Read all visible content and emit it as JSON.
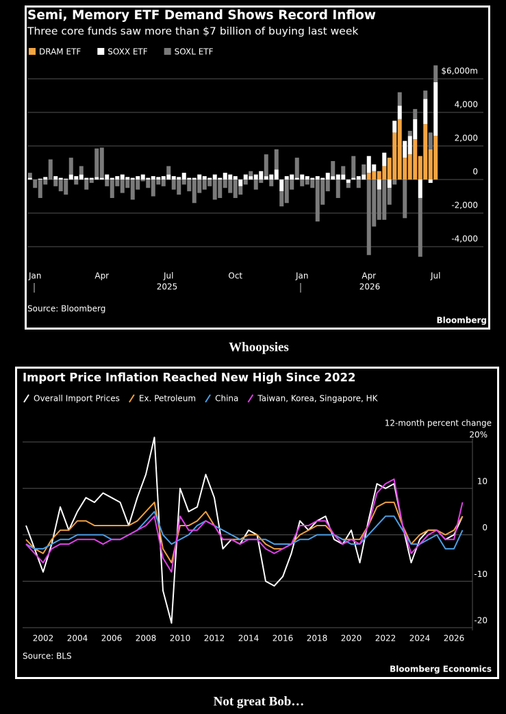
{
  "chart_data": [
    {
      "type": "bar",
      "stacked": true,
      "title": "Semi, Memory ETF Demand Shows Record Inflow",
      "subtitle": "Three core funds saw more than $7 billion of buying last week",
      "source": "Source: Bloomberg",
      "brand": "Bloomberg",
      "categories": [
        null,
        "Jan",
        null,
        null,
        null,
        null,
        null,
        null,
        null,
        null,
        null,
        null,
        null,
        null,
        "Apr",
        null,
        null,
        null,
        null,
        null,
        null,
        null,
        null,
        null,
        null,
        null,
        null,
        "Jul",
        null,
        null,
        null,
        null,
        null,
        null,
        null,
        null,
        null,
        null,
        null,
        null,
        "Oct",
        null,
        null,
        null,
        null,
        null,
        null,
        null,
        null,
        null,
        null,
        null,
        null,
        "Jan",
        null,
        null,
        null,
        null,
        null,
        null,
        null,
        null,
        null,
        null,
        null,
        null,
        "Apr",
        null,
        null,
        null,
        null,
        null,
        null,
        null,
        null,
        null,
        null,
        null,
        null,
        "Jul"
      ],
      "year_labels": [
        "2025",
        "2026"
      ],
      "series": [
        {
          "name": "DRAM ETF",
          "color": "#f5a542",
          "values": [
            0,
            0,
            0,
            0,
            0,
            0,
            0,
            0,
            0,
            0,
            0,
            0,
            0,
            0,
            0,
            0,
            0,
            0,
            0,
            0,
            0,
            0,
            0,
            0,
            0,
            0,
            0,
            0,
            0,
            0,
            0,
            0,
            0,
            0,
            0,
            0,
            0,
            0,
            0,
            0,
            0,
            0,
            0,
            0,
            0,
            0,
            0,
            0,
            0,
            0,
            0,
            0,
            0,
            0,
            0,
            0,
            0,
            0,
            0,
            0,
            0,
            0,
            0,
            0,
            0,
            0,
            400,
            500,
            500,
            800,
            1300,
            2800,
            3600,
            1300,
            1500,
            2400,
            1400,
            3300,
            1800,
            2600
          ]
        },
        {
          "name": "SOXX ETF",
          "color": "#ffffff",
          "values": [
            100,
            0,
            50,
            150,
            0,
            200,
            100,
            50,
            300,
            200,
            300,
            100,
            100,
            150,
            100,
            300,
            100,
            200,
            300,
            150,
            100,
            200,
            300,
            100,
            200,
            150,
            200,
            300,
            200,
            150,
            400,
            100,
            100,
            300,
            200,
            100,
            300,
            100,
            400,
            300,
            200,
            -400,
            300,
            200,
            300,
            500,
            200,
            300,
            600,
            -700,
            200,
            300,
            100,
            300,
            200,
            100,
            200,
            100,
            400,
            200,
            300,
            300,
            -200,
            100,
            200,
            300,
            1000,
            400,
            -600,
            800,
            -500,
            700,
            800,
            1000,
            1100,
            1200,
            -1100,
            1500,
            -200,
            3200
          ]
        },
        {
          "name": "SOXL ETF",
          "color": "#7a7a7a",
          "values": [
            300,
            -500,
            -1100,
            -300,
            1200,
            -400,
            -700,
            -900,
            1000,
            -300,
            500,
            -600,
            -200,
            1700,
            1800,
            -400,
            -1100,
            -400,
            -800,
            -500,
            -1200,
            -600,
            -100,
            -500,
            -1000,
            -300,
            -400,
            500,
            -600,
            -900,
            -300,
            -700,
            -1400,
            -800,
            -600,
            -400,
            -1200,
            -1100,
            -500,
            -800,
            -1100,
            -500,
            -300,
            300,
            -600,
            -200,
            1300,
            -400,
            1200,
            -900,
            -1400,
            -600,
            1200,
            -400,
            -300,
            -500,
            -2500,
            -1500,
            -700,
            900,
            -1100,
            500,
            -300,
            1300,
            -500,
            600,
            -4500,
            -2800,
            -1800,
            -2400,
            -1000,
            -300,
            800,
            -2300,
            300,
            600,
            -3500,
            500,
            1000,
            1000
          ]
        }
      ],
      "ylim": [
        -5000,
        7000
      ],
      "yticks": [
        {
          "value": 6000,
          "label": "$6,000m"
        },
        {
          "value": 4000,
          "label": "4,000"
        },
        {
          "value": 2000,
          "label": "2,000"
        },
        0,
        {
          "value": -2000,
          "label": "-2,000"
        },
        {
          "value": -4000,
          "label": "-4,000"
        }
      ],
      "grid": true
    },
    {
      "type": "line",
      "title": "Import Price Inflation Reached New High Since 2022",
      "y_axis_label": "12-month percent change",
      "source": "Source: BLS",
      "brand": "Bloomberg Economics",
      "x": [
        2001,
        2001.5,
        2002,
        2002.5,
        2003,
        2003.5,
        2004,
        2004.5,
        2005,
        2005.5,
        2006,
        2006.5,
        2007,
        2007.5,
        2008,
        2008.5,
        2009,
        2009.5,
        2010,
        2010.5,
        2011,
        2011.5,
        2012,
        2012.5,
        2013,
        2013.5,
        2014,
        2014.5,
        2015,
        2015.5,
        2016,
        2016.5,
        2017,
        2017.5,
        2018,
        2018.5,
        2019,
        2019.5,
        2020,
        2020.5,
        2021,
        2021.5,
        2022,
        2022.5,
        2023,
        2023.5,
        2024,
        2024.5,
        2025,
        2025.5,
        2026,
        2026.5
      ],
      "series": [
        {
          "name": "Overall Import Prices",
          "color": "#ffffff",
          "values": [
            2,
            -3,
            -8,
            -2,
            6,
            1,
            5,
            8,
            7,
            9,
            8,
            7,
            2,
            8,
            13,
            21,
            -12,
            -19,
            10,
            5,
            6,
            13,
            8,
            -3,
            -1,
            -2,
            1,
            0,
            -10,
            -11,
            -9,
            -4,
            3,
            1,
            3,
            4,
            -1,
            -2,
            1,
            -6,
            3,
            11,
            10,
            11,
            2,
            -6,
            -1,
            1,
            1,
            -1,
            0,
            4
          ]
        },
        {
          "name": "Ex. Petroleum",
          "color": "#f0a040",
          "values": [
            -1,
            -3,
            -4,
            -1,
            1,
            1,
            3,
            3,
            2,
            2,
            2,
            2,
            2,
            3,
            5,
            7,
            -3,
            -6,
            2,
            2,
            3,
            5,
            2,
            -1,
            -1,
            -1,
            0,
            0,
            -2,
            -3,
            -3,
            -2,
            0,
            1,
            2,
            2,
            0,
            -1,
            -1,
            -1,
            2,
            6,
            7,
            7,
            2,
            -2,
            0,
            1,
            1,
            0,
            1,
            4
          ]
        },
        {
          "name": "China",
          "color": "#4aa0e8",
          "values": [
            -2,
            -3,
            -3,
            -2,
            -1,
            -1,
            0,
            0,
            0,
            0,
            -1,
            -1,
            0,
            1,
            3,
            5,
            0,
            -2,
            -1,
            0,
            2,
            3,
            2,
            1,
            0,
            -1,
            -1,
            -1,
            -1,
            -2,
            -2,
            -2,
            -1,
            -1,
            0,
            0,
            0,
            -1,
            -2,
            -2,
            0,
            2,
            4,
            4,
            1,
            -2,
            -2,
            -1,
            0,
            -3,
            -3,
            1
          ]
        },
        {
          "name": "Taiwan, Korea, Singapore, HK",
          "color": "#e040e8",
          "values": [
            -2,
            -4,
            -6,
            -3,
            -2,
            -2,
            -1,
            -1,
            -1,
            -2,
            -1,
            -1,
            0,
            1,
            2,
            4,
            -5,
            -8,
            4,
            1,
            1,
            3,
            2,
            -1,
            -1,
            -2,
            -1,
            -1,
            -3,
            -4,
            -3,
            -2,
            2,
            2,
            3,
            3,
            0,
            -2,
            -1,
            -2,
            2,
            9,
            11,
            12,
            2,
            -4,
            -2,
            0,
            1,
            -1,
            -1,
            7
          ]
        }
      ],
      "xlim": [
        2000.8,
        2027
      ],
      "xticks": [
        2002,
        2004,
        2006,
        2008,
        2010,
        2012,
        2014,
        2016,
        2018,
        2020,
        2022,
        2024,
        2026
      ],
      "ylim": [
        -21,
        22
      ],
      "yticks": [
        {
          "value": 20,
          "label": "20%"
        },
        10,
        0,
        -10,
        -20
      ],
      "grid": true
    }
  ],
  "captions": [
    "Whoopsies",
    "Not great Bob…"
  ]
}
